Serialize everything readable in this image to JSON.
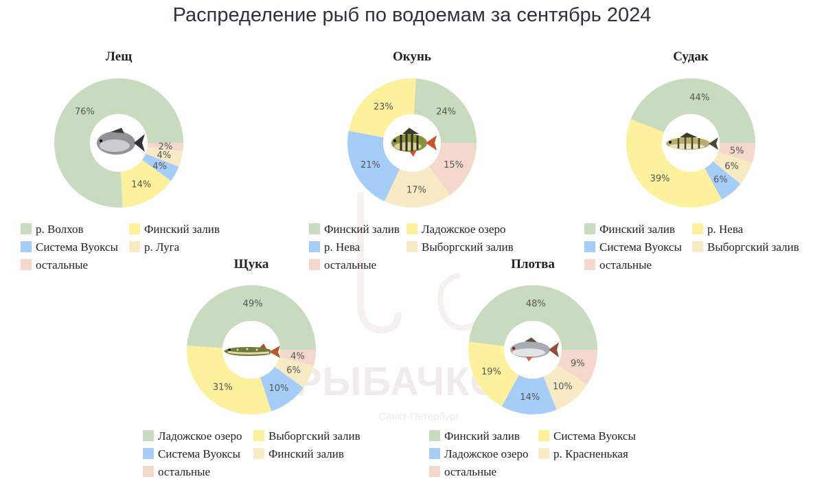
{
  "title": "Распределение рыб по водоемам за сентябрь 2024",
  "watermark": {
    "brand": "РЫБАЧКОФФ",
    "city": "Санкт-Петербург"
  },
  "colors": {
    "green": "#c9dbbf",
    "yellow": "#fdf19d",
    "blue": "#a6cdf8",
    "beige": "#f7eac4",
    "pink": "#f4d8cc"
  },
  "chart_data": [
    {
      "type": "pie",
      "title": "Лещ",
      "fish_icon": "bream-fish-icon",
      "slices": [
        {
          "name": "р. Волхов",
          "value": 76,
          "label": "76%",
          "color": "#c9dbbf"
        },
        {
          "name": "Финский залив",
          "value": 14,
          "label": "14%",
          "color": "#fdf19d"
        },
        {
          "name": "Система Вуоксы",
          "value": 4,
          "label": "4%",
          "color": "#a6cdf8"
        },
        {
          "name": "р. Луга",
          "value": 4,
          "label": "4%",
          "color": "#f7eac4"
        },
        {
          "name": "остальные",
          "value": 2,
          "label": "2%",
          "color": "#f4d8cc"
        }
      ]
    },
    {
      "type": "pie",
      "title": "Окунь",
      "fish_icon": "perch-fish-icon",
      "slices": [
        {
          "name": "Финский залив",
          "value": 24,
          "label": "24%",
          "color": "#c9dbbf"
        },
        {
          "name": "Ладожское озеро",
          "value": 23,
          "label": "23%",
          "color": "#fdf19d"
        },
        {
          "name": "р. Нева",
          "value": 21,
          "label": "21%",
          "color": "#a6cdf8"
        },
        {
          "name": "Выборгский залив",
          "value": 17,
          "label": "17%",
          "color": "#f7eac4"
        },
        {
          "name": "остальные",
          "value": 15,
          "label": "15%",
          "color": "#f4d8cc"
        }
      ]
    },
    {
      "type": "pie",
      "title": "Судак",
      "fish_icon": "zander-fish-icon",
      "slices": [
        {
          "name": "Финский залив",
          "value": 44,
          "label": "44%",
          "color": "#c9dbbf"
        },
        {
          "name": "р. Нева",
          "value": 39,
          "label": "39%",
          "color": "#fdf19d"
        },
        {
          "name": "Система Вуоксы",
          "value": 6,
          "label": "6%",
          "color": "#a6cdf8"
        },
        {
          "name": "Выборгский залив",
          "value": 6,
          "label": "6%",
          "color": "#f7eac4"
        },
        {
          "name": "остальные",
          "value": 5,
          "label": "5%",
          "color": "#f4d8cc"
        }
      ]
    },
    {
      "type": "pie",
      "title": "Щука",
      "fish_icon": "pike-fish-icon",
      "slices": [
        {
          "name": "Ладожское озеро",
          "value": 49,
          "label": "49%",
          "color": "#c9dbbf"
        },
        {
          "name": "Выборгский залив",
          "value": 31,
          "label": "31%",
          "color": "#fdf19d"
        },
        {
          "name": "Система Вуоксы",
          "value": 10,
          "label": "10%",
          "color": "#a6cdf8"
        },
        {
          "name": "Финский залив",
          "value": 6,
          "label": "6%",
          "color": "#f7eac4"
        },
        {
          "name": "остальные",
          "value": 4,
          "label": "4%",
          "color": "#f4d8cc"
        }
      ]
    },
    {
      "type": "pie",
      "title": "Плотва",
      "fish_icon": "roach-fish-icon",
      "slices": [
        {
          "name": "Финский залив",
          "value": 48,
          "label": "48%",
          "color": "#c9dbbf"
        },
        {
          "name": "Система Вуоксы",
          "value": 19,
          "label": "19%",
          "color": "#fdf19d"
        },
        {
          "name": "Ладожское озеро",
          "value": 14,
          "label": "14%",
          "color": "#a6cdf8"
        },
        {
          "name": "р. Красненькая",
          "value": 10,
          "label": "10%",
          "color": "#f7eac4"
        },
        {
          "name": "остальные",
          "value": 9,
          "label": "9%",
          "color": "#f4d8cc"
        }
      ]
    }
  ]
}
